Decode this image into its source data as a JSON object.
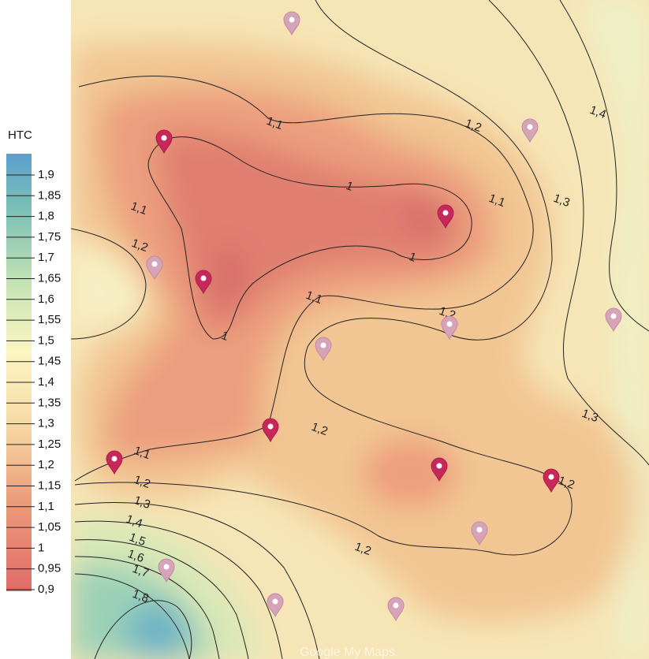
{
  "legend": {
    "title": "HTC",
    "labels": [
      "1,9",
      "1,85",
      "1,8",
      "1,75",
      "1,7",
      "1,65",
      "1,6",
      "1,55",
      "1,5",
      "1,45",
      "1,4",
      "1,35",
      "1,3",
      "1,25",
      "1,2",
      "1,15",
      "1,1",
      "1,05",
      "1",
      "0,95",
      "0,9"
    ]
  },
  "contour_labels": [
    "1,1",
    "1,2",
    "1,4",
    "1",
    "1,1",
    "1,3",
    "1,1",
    "1,2",
    "1",
    "1,1",
    "1,2",
    "1",
    "1,3",
    "1,2",
    "1,1",
    "1,2",
    "1,2",
    "1,3",
    "1,4",
    "1,5",
    "1,6",
    "1,7",
    "1,8",
    "1,2"
  ],
  "watermark": "Google My Maps"
}
